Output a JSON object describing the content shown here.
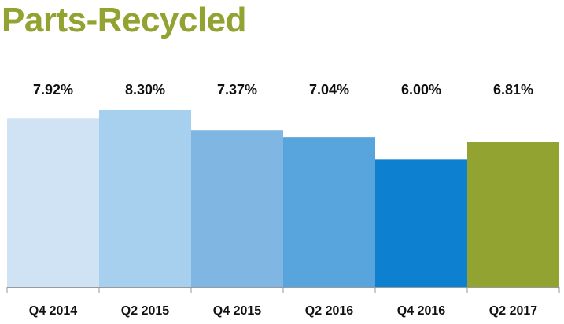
{
  "chart_data": {
    "type": "bar",
    "title": "Parts-Recycled",
    "title_color": "#93a331",
    "categories": [
      "Q4 2014",
      "Q2 2015",
      "Q4 2015",
      "Q2 2016",
      "Q4 2016",
      "Q2 2017"
    ],
    "values": [
      7.92,
      8.3,
      7.37,
      7.04,
      6.0,
      6.81
    ],
    "data_labels": [
      "7.92%",
      "8.30%",
      "7.37%",
      "7.04%",
      "6.00%",
      "6.81%"
    ],
    "bar_colors": [
      "#cfe3f4",
      "#a7d0ee",
      "#7fb6e2",
      "#58a4dc",
      "#0e80d0",
      "#93a331"
    ],
    "axis_color": "#9a9a9a",
    "ylim": [
      0,
      8.3
    ],
    "grid": false,
    "legend": "none",
    "xlabel": "",
    "ylabel": ""
  }
}
